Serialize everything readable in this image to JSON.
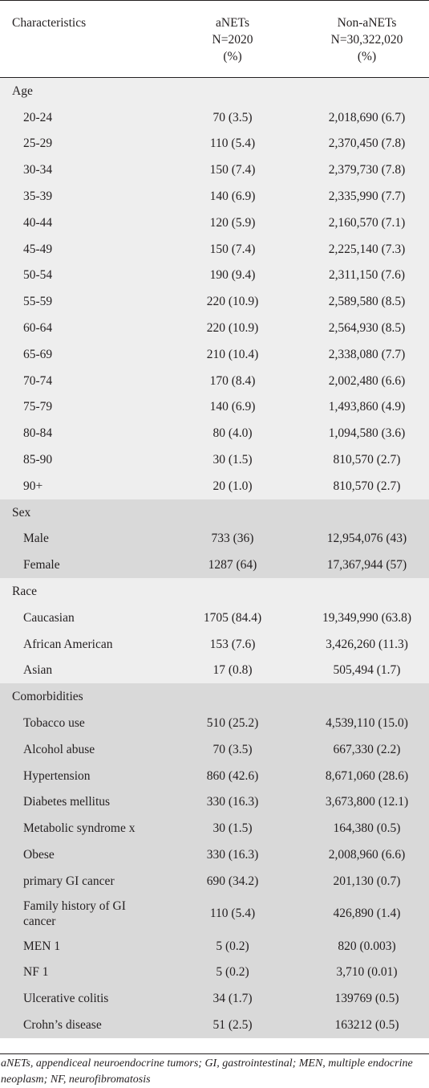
{
  "header": {
    "col1": "Characteristics",
    "col2_line1": "aNETs",
    "col2_line2": "N=2020",
    "col2_line3": "(%)",
    "col3_line1": "Non-aNETs",
    "col3_line2": "N=30,322,020",
    "col3_line3": "(%)"
  },
  "sections": [
    {
      "title": "Age",
      "rows": [
        {
          "label": "20-24",
          "anets": "70 (3.5)",
          "non_anets": "2,018,690 (6.7)"
        },
        {
          "label": "25-29",
          "anets": "110 (5.4)",
          "non_anets": "2,370,450 (7.8)"
        },
        {
          "label": "30-34",
          "anets": "150 (7.4)",
          "non_anets": "2,379,730 (7.8)"
        },
        {
          "label": "35-39",
          "anets": "140 (6.9)",
          "non_anets": "2,335,990 (7.7)"
        },
        {
          "label": "40-44",
          "anets": "120 (5.9)",
          "non_anets": "2,160,570 (7.1)"
        },
        {
          "label": "45-49",
          "anets": "150 (7.4)",
          "non_anets": "2,225,140 (7.3)"
        },
        {
          "label": "50-54",
          "anets": "190 (9.4)",
          "non_anets": "2,311,150 (7.6)"
        },
        {
          "label": "55-59",
          "anets": "220 (10.9)",
          "non_anets": "2,589,580 (8.5)"
        },
        {
          "label": "60-64",
          "anets": "220 (10.9)",
          "non_anets": "2,564,930 (8.5)"
        },
        {
          "label": "65-69",
          "anets": "210 (10.4)",
          "non_anets": "2,338,080 (7.7)"
        },
        {
          "label": "70-74",
          "anets": "170 (8.4)",
          "non_anets": "2,002,480 (6.6)"
        },
        {
          "label": "75-79",
          "anets": "140 (6.9)",
          "non_anets": "1,493,860 (4.9)"
        },
        {
          "label": "80-84",
          "anets": "80 (4.0)",
          "non_anets": "1,094,580 (3.6)"
        },
        {
          "label": "85-90",
          "anets": "30 (1.5)",
          "non_anets": "810,570 (2.7)"
        },
        {
          "label": "90+",
          "anets": "20 (1.0)",
          "non_anets": "810,570 (2.7)"
        }
      ]
    },
    {
      "title": "Sex",
      "rows": [
        {
          "label": "Male",
          "anets": "733 (36)",
          "non_anets": "12,954,076 (43)"
        },
        {
          "label": "Female",
          "anets": "1287 (64)",
          "non_anets": "17,367,944 (57)"
        }
      ]
    },
    {
      "title": "Race",
      "rows": [
        {
          "label": "Caucasian",
          "anets": "1705 (84.4)",
          "non_anets": "19,349,990 (63.8)"
        },
        {
          "label": "African American",
          "anets": "153 (7.6)",
          "non_anets": "3,426,260 (11.3)"
        },
        {
          "label": "Asian",
          "anets": "17 (0.8)",
          "non_anets": "505,494 (1.7)"
        }
      ]
    },
    {
      "title": "Comorbidities",
      "rows": [
        {
          "label": "Tobacco use",
          "anets": "510 (25.2)",
          "non_anets": "4,539,110 (15.0)"
        },
        {
          "label": "Alcohol abuse",
          "anets": "70 (3.5)",
          "non_anets": "667,330 (2.2)"
        },
        {
          "label": "Hypertension",
          "anets": "860 (42.6)",
          "non_anets": "8,671,060 (28.6)"
        },
        {
          "label": "Diabetes mellitus",
          "anets": "330 (16.3)",
          "non_anets": "3,673,800 (12.1)"
        },
        {
          "label": "Metabolic syndrome x",
          "anets": "30 (1.5)",
          "non_anets": "164,380 (0.5)"
        },
        {
          "label": "Obese",
          "anets": "330 (16.3)",
          "non_anets": "2,008,960 (6.6)"
        },
        {
          "label": "primary GI cancer",
          "anets": "690 (34.2)",
          "non_anets": "201,130 (0.7)"
        },
        {
          "label": "Family history of GI cancer",
          "anets": "110 (5.4)",
          "non_anets": "426,890 (1.4)"
        },
        {
          "label": "MEN 1",
          "anets": "5 (0.2)",
          "non_anets": "820 (0.003)"
        },
        {
          "label": "NF 1",
          "anets": "5 (0.2)",
          "non_anets": "3,710 (0.01)"
        },
        {
          "label": "Ulcerative colitis",
          "anets": "34 (1.7)",
          "non_anets": "139769 (0.5)"
        },
        {
          "label": "Crohn’s disease",
          "anets": "51 (2.5)",
          "non_anets": "163212 (0.5)"
        }
      ]
    }
  ],
  "footnote": "aNETs, appendiceal neuroendocrine tumors; GI, gastrointestinal; MEN, multiple endocrine neoplasm; NF, neurofibromatosis"
}
